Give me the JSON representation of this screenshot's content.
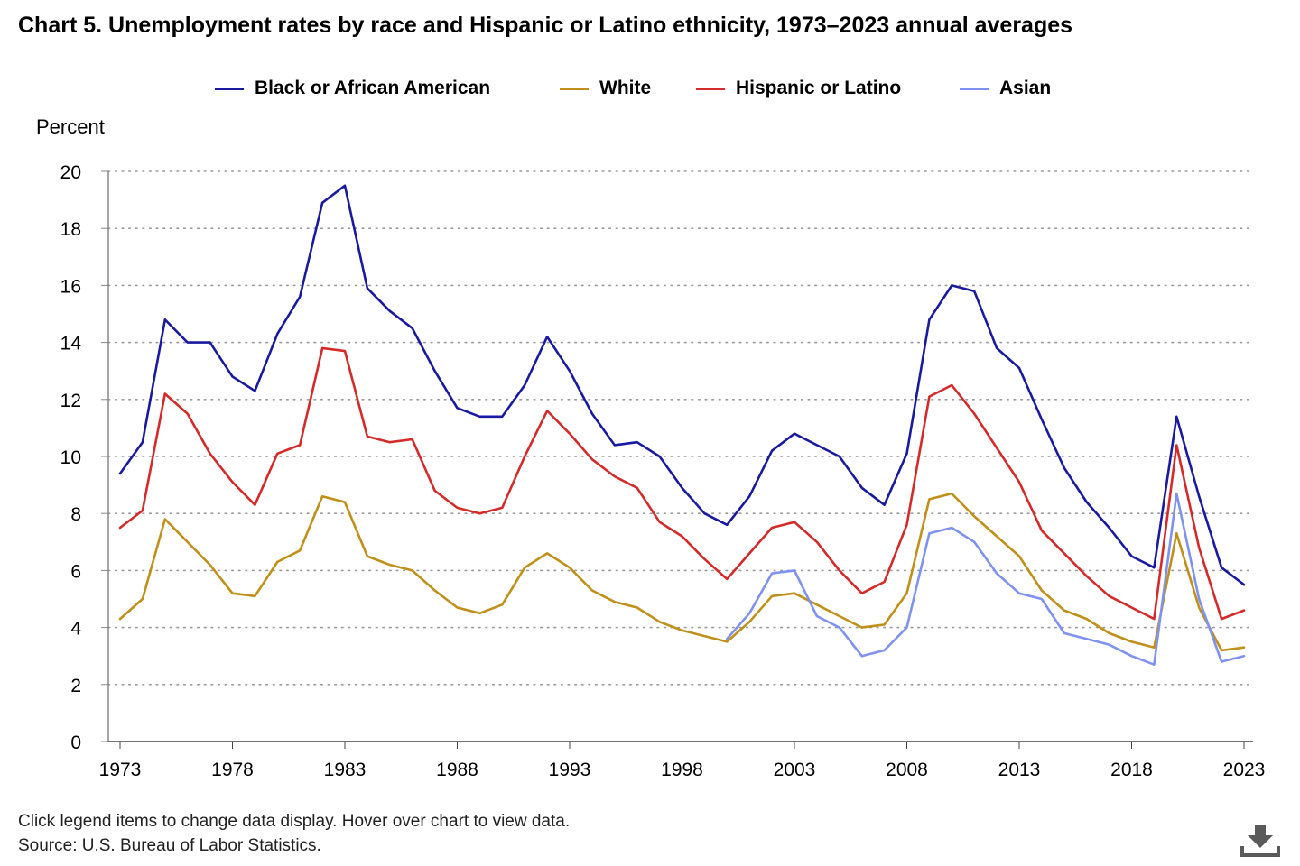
{
  "chart_data": {
    "type": "line",
    "title": "Chart 5. Unemployment rates by race and Hispanic or Latino ethnicity, 1973–2023 annual averages",
    "ylabel": "Percent",
    "xlabel": "",
    "ylim": [
      0,
      20
    ],
    "yticks": [
      "0",
      "2",
      "4",
      "6",
      "8",
      "10",
      "12",
      "14",
      "16",
      "18",
      "20"
    ],
    "xticks": [
      "1973",
      "1978",
      "1983",
      "1988",
      "1993",
      "1998",
      "2003",
      "2008",
      "2013",
      "2018",
      "2023"
    ],
    "grid": "horizontal dotted",
    "legend": "top",
    "x": [
      1973,
      1974,
      1975,
      1976,
      1977,
      1978,
      1979,
      1980,
      1981,
      1982,
      1983,
      1984,
      1985,
      1986,
      1987,
      1988,
      1989,
      1990,
      1991,
      1992,
      1993,
      1994,
      1995,
      1996,
      1997,
      1998,
      1999,
      2000,
      2001,
      2002,
      2003,
      2004,
      2005,
      2006,
      2007,
      2008,
      2009,
      2010,
      2011,
      2012,
      2013,
      2014,
      2015,
      2016,
      2017,
      2018,
      2019,
      2020,
      2021,
      2022,
      2023
    ],
    "series": [
      {
        "name": "Black or African American",
        "color": "#1a1aa0",
        "values": [
          9.4,
          10.5,
          14.8,
          14.0,
          14.0,
          12.8,
          12.3,
          14.3,
          15.6,
          18.9,
          19.5,
          15.9,
          15.1,
          14.5,
          13.0,
          11.7,
          11.4,
          11.4,
          12.5,
          14.2,
          13.0,
          11.5,
          10.4,
          10.5,
          10.0,
          8.9,
          8.0,
          7.6,
          8.6,
          10.2,
          10.8,
          10.4,
          10.0,
          8.9,
          8.3,
          10.1,
          14.8,
          16.0,
          15.8,
          13.8,
          13.1,
          11.3,
          9.6,
          8.4,
          7.5,
          6.5,
          6.1,
          11.4,
          8.6,
          6.1,
          5.5
        ]
      },
      {
        "name": "White",
        "color": "#c0901a",
        "values": [
          4.3,
          5.0,
          7.8,
          7.0,
          6.2,
          5.2,
          5.1,
          6.3,
          6.7,
          8.6,
          8.4,
          6.5,
          6.2,
          6.0,
          5.3,
          4.7,
          4.5,
          4.8,
          6.1,
          6.6,
          6.1,
          5.3,
          4.9,
          4.7,
          4.2,
          3.9,
          3.7,
          3.5,
          4.2,
          5.1,
          5.2,
          4.8,
          4.4,
          4.0,
          4.1,
          5.2,
          8.5,
          8.7,
          7.9,
          7.2,
          6.5,
          5.3,
          4.6,
          4.3,
          3.8,
          3.5,
          3.3,
          7.3,
          4.7,
          3.2,
          3.3
        ]
      },
      {
        "name": "Hispanic or Latino",
        "color": "#d42a2a",
        "values": [
          7.5,
          8.1,
          12.2,
          11.5,
          10.1,
          9.1,
          8.3,
          10.1,
          10.4,
          13.8,
          13.7,
          10.7,
          10.5,
          10.6,
          8.8,
          8.2,
          8.0,
          8.2,
          10.0,
          11.6,
          10.8,
          9.9,
          9.3,
          8.9,
          7.7,
          7.2,
          6.4,
          5.7,
          6.6,
          7.5,
          7.7,
          7.0,
          6.0,
          5.2,
          5.6,
          7.6,
          12.1,
          12.5,
          11.5,
          10.3,
          9.1,
          7.4,
          6.6,
          5.8,
          5.1,
          4.7,
          4.3,
          10.4,
          6.8,
          4.3,
          4.6
        ]
      },
      {
        "name": "Asian",
        "color": "#7f92f0",
        "values": [
          null,
          null,
          null,
          null,
          null,
          null,
          null,
          null,
          null,
          null,
          null,
          null,
          null,
          null,
          null,
          null,
          null,
          null,
          null,
          null,
          null,
          null,
          null,
          null,
          null,
          null,
          null,
          3.6,
          4.5,
          5.9,
          6.0,
          4.4,
          4.0,
          3.0,
          3.2,
          4.0,
          7.3,
          7.5,
          7.0,
          5.9,
          5.2,
          5.0,
          3.8,
          3.6,
          3.4,
          3.0,
          2.7,
          8.7,
          5.0,
          2.8,
          3.0
        ]
      }
    ]
  },
  "footer": {
    "line1": "Click legend items to change data display. Hover over chart to view data.",
    "line2": "Source: U.S. Bureau of Labor Statistics."
  },
  "download": {
    "icon": "download-icon"
  }
}
